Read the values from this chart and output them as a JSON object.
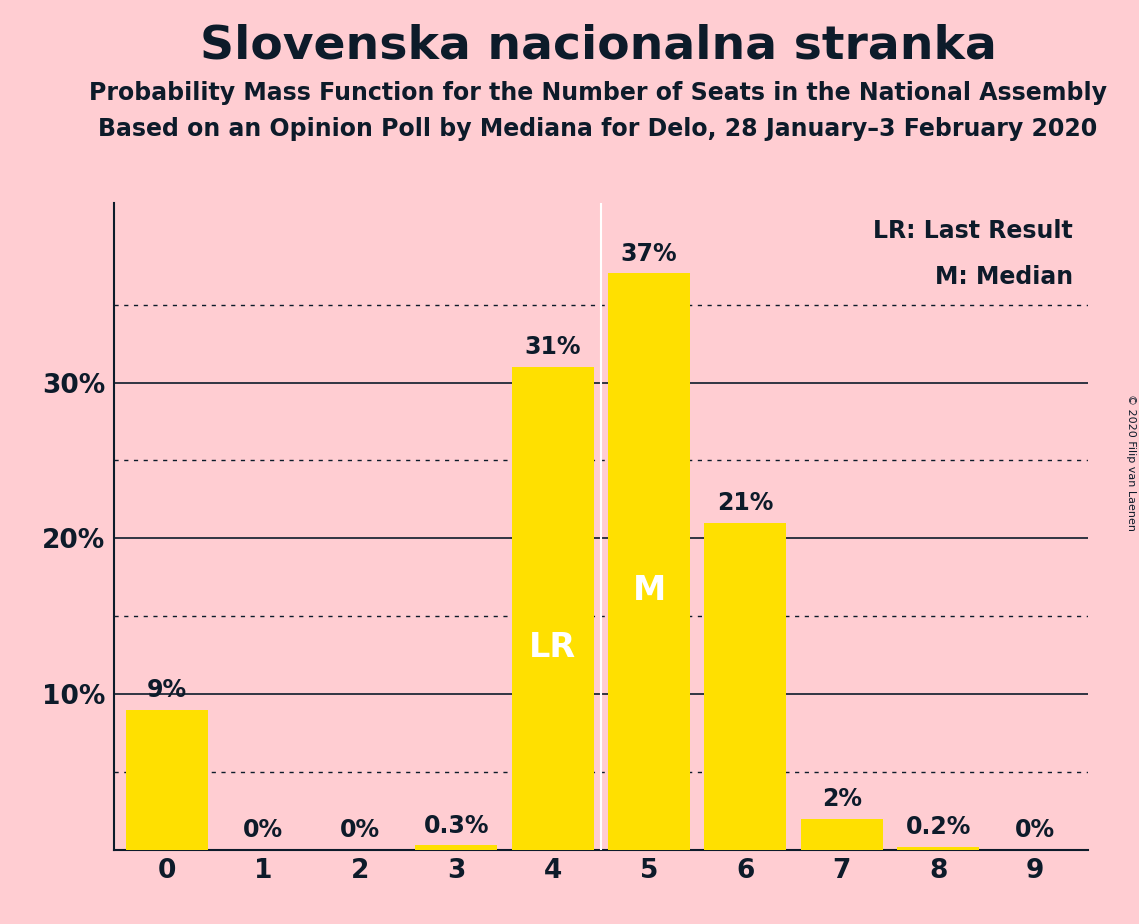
{
  "title": "Slovenska nacionalna stranka",
  "subtitle1": "Probability Mass Function for the Number of Seats in the National Assembly",
  "subtitle2": "Based on an Opinion Poll by Mediana for Delo, 28 January–3 February 2020",
  "copyright": "© 2020 Filip van Laenen",
  "categories": [
    0,
    1,
    2,
    3,
    4,
    5,
    6,
    7,
    8,
    9
  ],
  "values": [
    0.09,
    0.0,
    0.0,
    0.003,
    0.31,
    0.37,
    0.21,
    0.02,
    0.002,
    0.0
  ],
  "labels": [
    "9%",
    "0%",
    "0%",
    "0.3%",
    "31%",
    "37%",
    "21%",
    "2%",
    "0.2%",
    "0%"
  ],
  "bar_color": "#FFE000",
  "background_color": "#FFCDD2",
  "text_color": "#0D1B2A",
  "label_color_inside": "#FFFFFF",
  "label_color_outside": "#0D1B2A",
  "lr_bar": 4,
  "median_bar": 5,
  "lr_label": "LR",
  "median_label": "M",
  "legend_lr": "LR: Last Result",
  "legend_m": "M: Median",
  "ytick_labels": [
    "",
    "10%",
    "20%",
    "30%"
  ],
  "ytick_values": [
    0,
    0.1,
    0.2,
    0.3
  ],
  "ylim": [
    0,
    0.415
  ],
  "grid_color": "#0D1B2A",
  "dotted_grid_levels": [
    0.05,
    0.15,
    0.25,
    0.35
  ],
  "solid_grid_levels": [
    0.1,
    0.2,
    0.3
  ],
  "bar_width": 0.85,
  "title_fontsize": 34,
  "subtitle_fontsize": 17,
  "tick_fontsize": 19,
  "label_fontsize": 17,
  "inside_label_fontsize": 24,
  "legend_fontsize": 17,
  "copyright_fontsize": 8
}
